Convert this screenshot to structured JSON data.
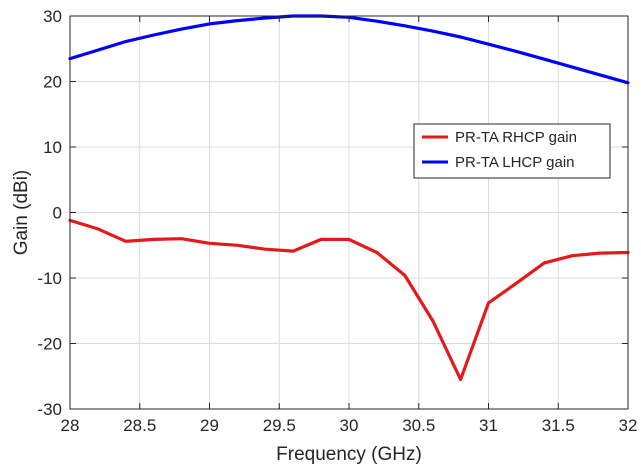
{
  "chart_data": {
    "type": "line",
    "title": "",
    "xlabel": "Frequency (GHz)",
    "ylabel": "Gain (dBi)",
    "xlim": [
      28,
      32
    ],
    "ylim": [
      -30,
      30
    ],
    "xticks": [
      28,
      28.5,
      29,
      29.5,
      30,
      30.5,
      31,
      31.5,
      32
    ],
    "yticks": [
      -30,
      -20,
      -10,
      0,
      10,
      20,
      30
    ],
    "grid": true,
    "legend_position": "right",
    "series": [
      {
        "name": "PR-TA RHCP gain",
        "color": "#e31a1c",
        "x": [
          28,
          28.2,
          28.4,
          28.6,
          28.8,
          29,
          29.2,
          29.4,
          29.6,
          29.8,
          30,
          30.2,
          30.4,
          30.6,
          30.8,
          31,
          31.2,
          31.4,
          31.6,
          31.8,
          32
        ],
        "y": [
          -1.2,
          -2.5,
          -4.4,
          -4.1,
          -4.0,
          -4.7,
          -5.0,
          -5.6,
          -5.9,
          -4.1,
          -4.1,
          -6.1,
          -9.6,
          -16.5,
          -25.5,
          -13.8,
          -10.8,
          -7.7,
          -6.6,
          -6.2,
          -6.1
        ]
      },
      {
        "name": "PR-TA LHCP gain",
        "color": "#0000ff",
        "x": [
          28,
          28.2,
          28.4,
          28.6,
          28.8,
          29,
          29.2,
          29.4,
          29.6,
          29.8,
          30,
          30.2,
          30.4,
          30.6,
          30.8,
          31,
          31.2,
          31.4,
          31.6,
          31.8,
          32
        ],
        "y": [
          23.5,
          24.8,
          26.1,
          27.1,
          28.0,
          28.8,
          29.3,
          29.7,
          30.0,
          30.0,
          29.8,
          29.2,
          28.5,
          27.7,
          26.8,
          25.7,
          24.6,
          23.4,
          22.2,
          21.0,
          19.8
        ]
      }
    ]
  }
}
